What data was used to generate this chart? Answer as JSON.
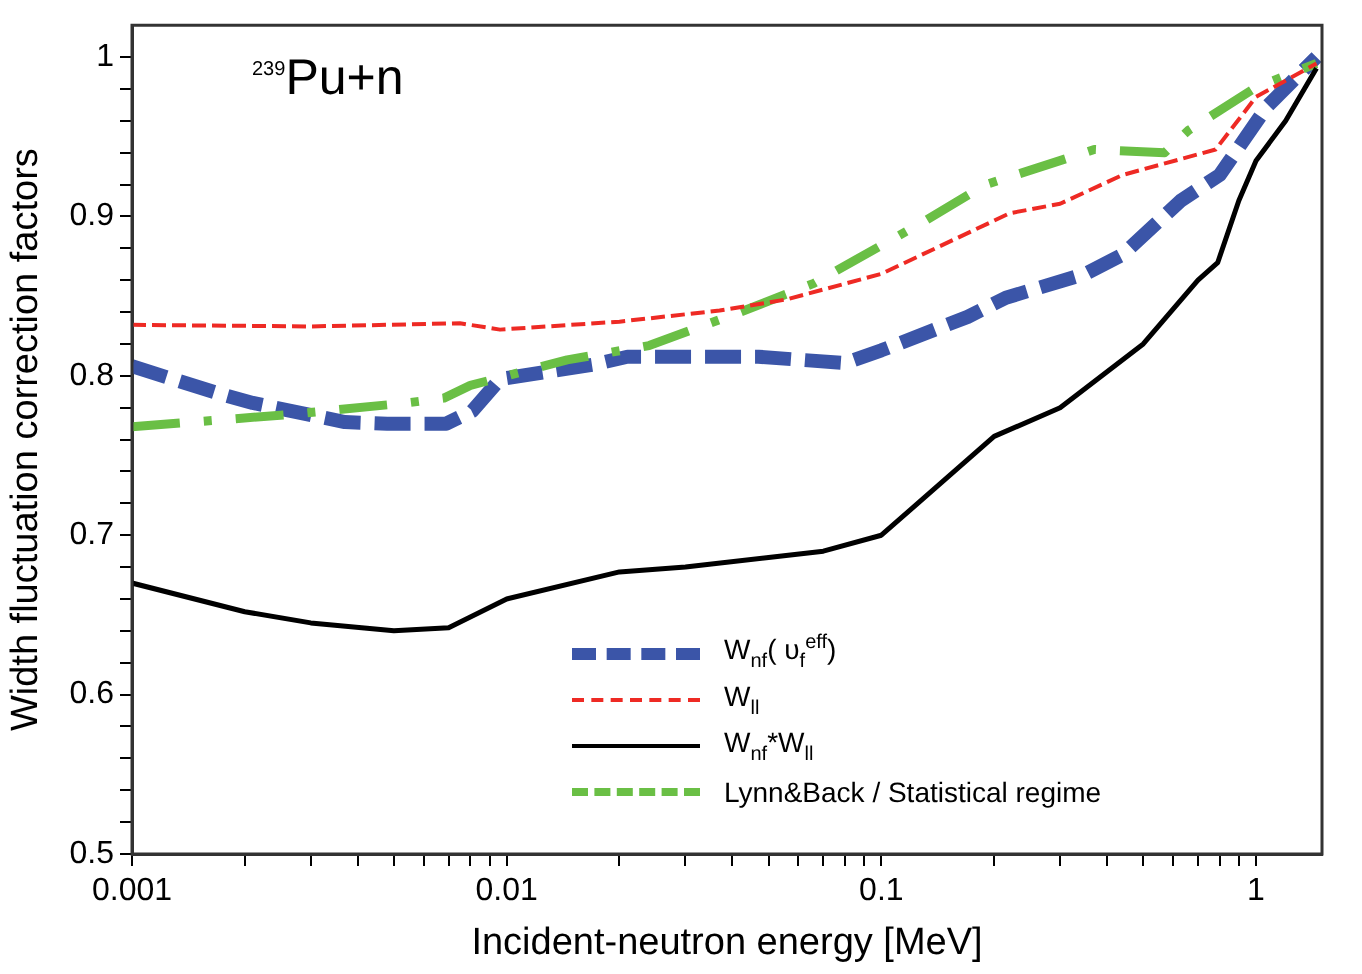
{
  "chart_data": {
    "type": "line",
    "title": "$^{239}$Pu+n",
    "xlabel": "Incident-neutron energy [MeV]",
    "ylabel": "Width fluctuation correction factors",
    "log": "x",
    "xlim": [
      0.001,
      1.5
    ],
    "ylim": [
      0.5,
      1.02
    ],
    "xticks": [
      0.001,
      {
        "value": 0.002,
        "label": null
      },
      {
        "value": 0.003,
        "label": null
      },
      {
        "value": 0.004,
        "label": null
      },
      {
        "value": 0.005,
        "label": null
      },
      {
        "value": 0.006,
        "label": null
      },
      {
        "value": 0.007,
        "label": null
      },
      {
        "value": 0.008,
        "label": null
      },
      {
        "value": 0.009,
        "label": null
      },
      0.01,
      {
        "value": 0.02,
        "label": null
      },
      {
        "value": 0.03,
        "label": null
      },
      {
        "value": 0.04,
        "label": null
      },
      {
        "value": 0.05,
        "label": null
      },
      {
        "value": 0.06,
        "label": null
      },
      {
        "value": 0.07,
        "label": null
      },
      {
        "value": 0.08,
        "label": null
      },
      {
        "value": 0.09,
        "label": null
      },
      0.1,
      {
        "value": 0.2,
        "label": null
      },
      {
        "value": 0.3,
        "label": null
      },
      {
        "value": 0.4,
        "label": null
      },
      {
        "value": 0.5,
        "label": null
      },
      {
        "value": 0.6,
        "label": null
      },
      {
        "value": 0.7,
        "label": null
      },
      {
        "value": 0.8,
        "label": null
      },
      {
        "value": 0.9,
        "label": null
      },
      1
    ],
    "yticks": [
      0.5,
      {
        "value": 0.52,
        "label": null
      },
      {
        "value": 0.54,
        "label": null
      },
      {
        "value": 0.56,
        "label": null
      },
      {
        "value": 0.58,
        "label": null
      },
      0.6,
      {
        "value": 0.62,
        "label": null
      },
      {
        "value": 0.64,
        "label": null
      },
      {
        "value": 0.66,
        "label": null
      },
      {
        "value": 0.68,
        "label": null
      },
      0.7,
      {
        "value": 0.72,
        "label": null
      },
      {
        "value": 0.74,
        "label": null
      },
      {
        "value": 0.76,
        "label": null
      },
      {
        "value": 0.78,
        "label": null
      },
      0.8,
      {
        "value": 0.82,
        "label": null
      },
      {
        "value": 0.84,
        "label": null
      },
      {
        "value": 0.86,
        "label": null
      },
      {
        "value": 0.88,
        "label": null
      },
      0.9,
      {
        "value": 0.92,
        "label": null
      },
      {
        "value": 0.94,
        "label": null
      },
      {
        "value": 0.96,
        "label": null
      },
      {
        "value": 0.98,
        "label": null
      },
      1
    ],
    "grid": false,
    "legend": "bottom right",
    "marker": "none",
    "series": [
      {
        "name": "W$_{nf}$( υ$_{f}$$^{eff}$)",
        "color": "#3b55a8",
        "line_style": "dashed",
        "x": [
          0.001,
          0.0017,
          0.0021,
          0.0037,
          0.0048,
          0.0069,
          0.0081,
          0.0096,
          0.017,
          0.021,
          0.036,
          0.047,
          0.08,
          0.1,
          0.17,
          0.215,
          0.35,
          0.44,
          0.63,
          0.8,
          1.07,
          1.45
        ],
        "values": [
          0.806,
          0.789,
          0.783,
          0.771,
          0.77,
          0.77,
          0.778,
          0.798,
          0.807,
          0.812,
          0.812,
          0.812,
          0.808,
          0.816,
          0.837,
          0.849,
          0.864,
          0.876,
          0.91,
          0.926,
          0.969,
          1.0
        ]
      },
      {
        "name": "W$_{ll}$",
        "color": "#ee2a24",
        "line_style": "dashed",
        "x": [
          0.001,
          0.003,
          0.0075,
          0.0096,
          0.02,
          0.037,
          0.056,
          0.1,
          0.22,
          0.3,
          0.44,
          0.78,
          1.0,
          1.45
        ],
        "values": [
          0.832,
          0.831,
          0.833,
          0.829,
          0.834,
          0.841,
          0.848,
          0.864,
          0.902,
          0.908,
          0.926,
          0.942,
          0.975,
          0.996
        ]
      },
      {
        "name": "W$_{nf}$*W$_{ll}$",
        "color": "#000000",
        "line_style": "solid",
        "x": [
          0.001,
          0.002,
          0.003,
          0.005,
          0.007,
          0.01,
          0.02,
          0.03,
          0.05,
          0.07,
          0.1,
          0.2,
          0.3,
          0.5,
          0.7,
          0.79,
          0.9,
          1.0,
          1.2,
          1.45
        ],
        "values": [
          0.67,
          0.652,
          0.645,
          0.64,
          0.642,
          0.66,
          0.677,
          0.68,
          0.686,
          0.69,
          0.7,
          0.762,
          0.78,
          0.82,
          0.86,
          0.871,
          0.91,
          0.935,
          0.96,
          0.993
        ]
      },
      {
        "name": "Lynn&Back / Statistical regime",
        "color": "#6abf45",
        "line_style": "dashed",
        "x": [
          0.001,
          0.0027,
          0.0054,
          0.0068,
          0.008,
          0.0145,
          0.024,
          0.042,
          0.066,
          0.128,
          0.19,
          0.37,
          0.57,
          0.66,
          1.0,
          1.45
        ],
        "values": [
          0.768,
          0.776,
          0.783,
          0.786,
          0.794,
          0.81,
          0.819,
          0.84,
          0.858,
          0.896,
          0.92,
          0.942,
          0.94,
          0.954,
          0.981,
          0.996
        ]
      }
    ]
  }
}
